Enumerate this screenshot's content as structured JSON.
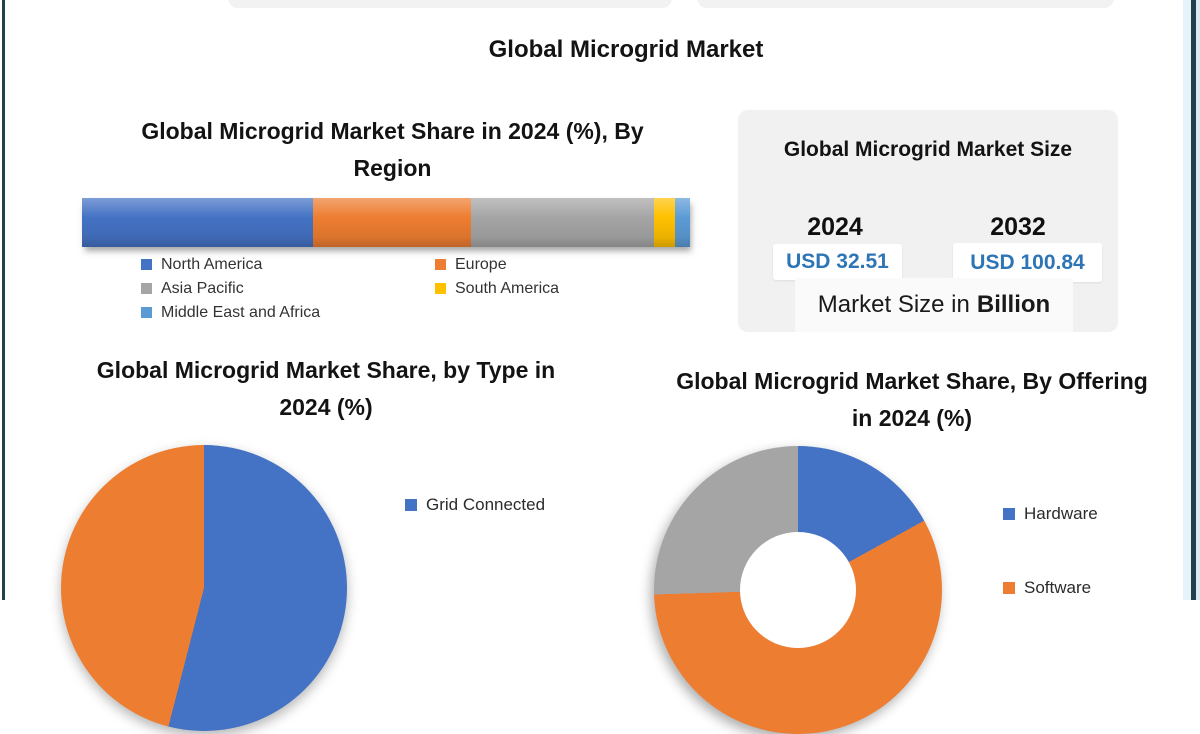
{
  "header": {
    "title": "Global Microgrid Market"
  },
  "market_size": {
    "title": "Global Microgrid Market Size",
    "left": {
      "year": "2024",
      "value": "USD 32.51"
    },
    "right": {
      "year": "2032",
      "value": "USD 100.84"
    },
    "caption_normal": "Market Size in",
    "caption_bold": "Billion"
  },
  "colors": {
    "usd_value_text": "#2E75B6",
    "frame": "#22404d",
    "card_background": "#f1f1f1"
  },
  "chart_data": [
    {
      "id": "region_share",
      "type": "bar",
      "variant": "horizontal-stacked",
      "title": "Global Microgrid Market Share in 2024 (%), By Region",
      "unit": "%",
      "legend_position": "bottom",
      "segments": [
        {
          "label": "North America",
          "value": 38,
          "color": "#4472C4"
        },
        {
          "label": "Europe",
          "value": 26,
          "color": "#ED7D31"
        },
        {
          "label": "Asia Pacific",
          "value": 30,
          "color": "#A5A5A5"
        },
        {
          "label": "South America",
          "value": 3.5,
          "color": "#FFC000"
        },
        {
          "label": "Middle East and Africa",
          "value": 2.5,
          "color": "#5B9BD5"
        }
      ]
    },
    {
      "id": "market_size",
      "type": "table",
      "title": "Global Microgrid Market Size",
      "columns": [
        "2024",
        "2032"
      ],
      "rows": [
        [
          "USD 32.51",
          "USD 100.84"
        ]
      ],
      "caption": "Market Size in Billion",
      "unit": "USD Billion"
    },
    {
      "id": "type_share",
      "type": "pie",
      "title": "Global Microgrid Market Share, by Type in 2024 (%)",
      "unit": "%",
      "legend_position": "right",
      "segments": [
        {
          "label": "Grid Connected",
          "value": 54,
          "color": "#4472C4",
          "label_visible": true
        },
        {
          "label": "",
          "value": 46,
          "color": "#ED7D31",
          "label_visible": false
        }
      ]
    },
    {
      "id": "offering_share",
      "type": "pie",
      "variant": "donut",
      "title": "Global Microgrid Market Share, By Offering in 2024 (%)",
      "unit": "%",
      "legend_position": "right",
      "segments": [
        {
          "label": "Hardware",
          "value": 17,
          "color": "#4472C4",
          "label_visible": true
        },
        {
          "label": "Software",
          "value": 57.5,
          "color": "#ED7D31",
          "label_visible": true
        },
        {
          "label": "",
          "value": 25.5,
          "color": "#A5A5A5",
          "label_visible": false
        }
      ]
    }
  ]
}
